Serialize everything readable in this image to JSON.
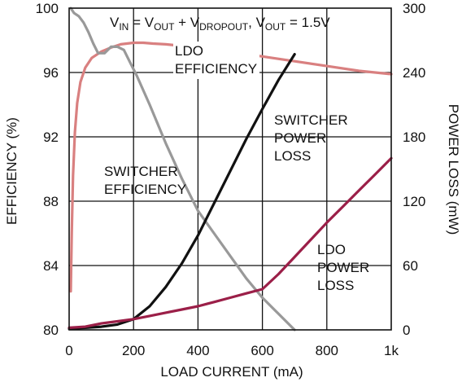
{
  "chart_data": {
    "type": "line",
    "title": "",
    "condition_text": {
      "v_in": "V",
      "v_in_sub": "IN",
      "eq1": " = V",
      "v_out_sub": "OUT",
      "plus": " + V",
      "v_drop_sub": "DROPOUT",
      "comma": ", V",
      "v_out2_sub": "OUT",
      "eq2": " = 1.5V"
    },
    "xlabel": "LOAD CURRENT (mA)",
    "ylabel_left": "EFFICIENCY (%)",
    "ylabel_right": "POWER LOSS (mW)",
    "xlim": [
      0,
      1000
    ],
    "ylim_left": [
      80,
      100
    ],
    "ylim_right": [
      0,
      300
    ],
    "x_ticks": [
      "0",
      "200",
      "400",
      "600",
      "800",
      "1k"
    ],
    "y_left_ticks": [
      "80",
      "84",
      "88",
      "92",
      "96",
      "100"
    ],
    "y_right_ticks": [
      "0",
      "60",
      "120",
      "180",
      "240",
      "300"
    ],
    "grid": true,
    "series": [
      {
        "name": "LDO EFFICIENCY",
        "label_lines": [
          "LDO",
          "EFFICIENCY"
        ],
        "axis": "left",
        "color": "#d98080",
        "x": [
          5,
          8,
          12,
          18,
          25,
          35,
          50,
          70,
          100,
          130,
          160,
          200,
          230,
          260,
          300,
          400,
          500,
          600,
          700,
          800,
          900,
          1000
        ],
        "y": [
          82.4,
          86.0,
          89.6,
          92.3,
          94.1,
          95.4,
          96.3,
          96.9,
          97.3,
          97.55,
          97.75,
          97.85,
          97.85,
          97.8,
          97.75,
          97.55,
          97.3,
          97.0,
          96.7,
          96.4,
          96.1,
          95.9
        ]
      },
      {
        "name": "SWITCHER EFFICIENCY",
        "label_lines": [
          "SWITCHER",
          "EFFICIENCY"
        ],
        "axis": "left",
        "color": "#999999",
        "x": [
          5,
          15,
          30,
          45,
          60,
          75,
          90,
          110,
          130,
          150,
          170,
          190,
          210,
          250,
          300,
          350,
          400,
          450,
          500,
          550,
          600,
          650,
          700
        ],
        "y": [
          100,
          99.7,
          99.5,
          99.1,
          98.5,
          97.8,
          97.2,
          97.2,
          97.6,
          97.6,
          97.4,
          96.6,
          95.8,
          94.0,
          91.6,
          89.4,
          87.4,
          86.0,
          84.6,
          83.2,
          82.0,
          81.0,
          80.0
        ]
      },
      {
        "name": "SWITCHER POWER LOSS",
        "label_lines": [
          "SWITCHER",
          "POWER",
          "LOSS"
        ],
        "axis": "right",
        "color": "#111111",
        "x": [
          0,
          50,
          100,
          150,
          200,
          250,
          300,
          350,
          400,
          450,
          500,
          550,
          600,
          650,
          700
        ],
        "y": [
          1,
          2,
          3,
          5,
          10,
          22,
          40,
          62,
          88,
          118,
          148,
          178,
          206,
          233,
          257
        ]
      },
      {
        "name": "LDO POWER LOSS",
        "label_lines": [
          "LDO",
          "POWER",
          "LOSS"
        ],
        "axis": "right",
        "color": "#9b1f48",
        "x": [
          0,
          50,
          100,
          150,
          200,
          250,
          300,
          350,
          400,
          450,
          500,
          550,
          600,
          650,
          700,
          750,
          800,
          850,
          900,
          950,
          1000
        ],
        "y": [
          2,
          3,
          6,
          8,
          10,
          13,
          16,
          19,
          22,
          26,
          30,
          34,
          38,
          52,
          68,
          84,
          100,
          115,
          130,
          145,
          160
        ]
      }
    ]
  }
}
